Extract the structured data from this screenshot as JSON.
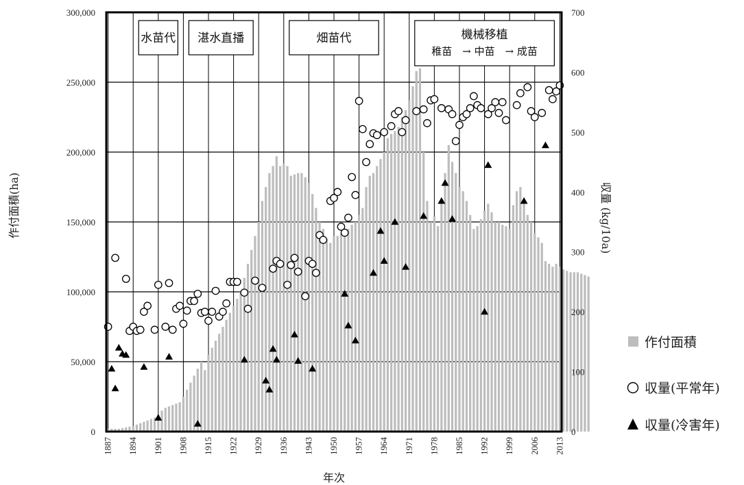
{
  "chart_data": {
    "type": "bar+scatter",
    "title": "",
    "xlabel": "年次",
    "ylabel_left": "作付面積(ha)",
    "ylabel_right": "収量 (kg/10a)",
    "ylim_left": [
      0,
      300000
    ],
    "ylim_right": [
      0,
      700
    ],
    "xlim": [
      1887,
      2013
    ],
    "left_ticks": [
      "0",
      "50,000",
      "100,000",
      "150,000",
      "200,000",
      "250,000",
      "300,000"
    ],
    "left_tick_values": [
      0,
      50000,
      100000,
      150000,
      200000,
      250000,
      300000
    ],
    "right_ticks": [
      "0",
      "100",
      "200",
      "300",
      "400",
      "500",
      "600",
      "700"
    ],
    "right_tick_values": [
      0,
      100,
      200,
      300,
      400,
      500,
      600,
      700
    ],
    "x_ticks": [
      "1887",
      "1894",
      "1901",
      "1908",
      "1915",
      "1922",
      "1929",
      "1936",
      "1943",
      "1950",
      "1957",
      "1964",
      "1971",
      "1978",
      "1985",
      "1992",
      "1999",
      "2006",
      "2013"
    ],
    "x_tick_values": [
      1887,
      1894,
      1901,
      1908,
      1915,
      1922,
      1929,
      1936,
      1943,
      1950,
      1957,
      1964,
      1971,
      1978,
      1985,
      1992,
      1999,
      2006,
      2013
    ],
    "grid": true,
    "legend_position": "right",
    "periods": [
      {
        "label": "水苗代",
        "start": 1894,
        "end": 1908
      },
      {
        "label": "湛水直播",
        "start": 1908,
        "end": 1929
      },
      {
        "label": "畑苗代",
        "start": 1936,
        "end": 1964
      },
      {
        "label": "機械移植",
        "sublabel": "稚苗　→ 中苗　→ 成苗",
        "start": 1971,
        "end": 2013
      }
    ],
    "series": [
      {
        "name": "作付面積",
        "kind": "bar",
        "axis": "left",
        "color": "#bdbdbd",
        "x_start": 1887,
        "values": [
          2000,
          2000,
          2000,
          2000,
          2500,
          3000,
          3500,
          4000,
          5000,
          6000,
          7000,
          8000,
          9000,
          10000,
          12000,
          15000,
          17000,
          18000,
          19000,
          20000,
          21000,
          25000,
          30000,
          35000,
          40000,
          45000,
          50000,
          44000,
          55000,
          60000,
          65000,
          70000,
          75000,
          80000,
          85000,
          90000,
          95000,
          100000,
          110000,
          120000,
          130000,
          140000,
          150000,
          165000,
          175000,
          185000,
          190000,
          197000,
          190000,
          192000,
          190000,
          183000,
          184000,
          185000,
          185000,
          182000,
          178000,
          170000,
          160000,
          150000,
          145000,
          138000,
          135000,
          140000,
          140000,
          142000,
          145000,
          145000,
          148000,
          150000,
          155000,
          160000,
          175000,
          183000,
          185000,
          190000,
          195000,
          200000,
          210000,
          213000,
          215000,
          218000,
          225000,
          230000,
          237000,
          247000,
          258000,
          260000,
          200000,
          165000,
          150000,
          154000,
          147000,
          165000,
          185000,
          205000,
          193000,
          185000,
          175000,
          172000,
          165000,
          155000,
          145000,
          147000,
          152000,
          158000,
          163000,
          157000,
          150000,
          150000,
          148000,
          147000,
          145000,
          162000,
          172000,
          175000,
          165000,
          155000,
          150000,
          142000,
          139000,
          135000,
          122000,
          120000,
          118000,
          120000,
          118000,
          116000,
          115000,
          114000,
          114000,
          114000,
          113000,
          112000,
          111000
        ]
      },
      {
        "name": "収量(平常年)",
        "kind": "scatter",
        "axis": "right",
        "marker": "open-circle",
        "points": [
          [
            1887,
            175
          ],
          [
            1889,
            290
          ],
          [
            1892,
            255
          ],
          [
            1893,
            168
          ],
          [
            1894,
            175
          ],
          [
            1895,
            168
          ],
          [
            1896,
            170
          ],
          [
            1897,
            200
          ],
          [
            1898,
            210
          ],
          [
            1900,
            170
          ],
          [
            1901,
            245
          ],
          [
            1903,
            175
          ],
          [
            1904,
            248
          ],
          [
            1905,
            170
          ],
          [
            1906,
            205
          ],
          [
            1907,
            210
          ],
          [
            1908,
            180
          ],
          [
            1909,
            202
          ],
          [
            1910,
            218
          ],
          [
            1911,
            218
          ],
          [
            1912,
            230
          ],
          [
            1913,
            198
          ],
          [
            1914,
            200
          ],
          [
            1915,
            185
          ],
          [
            1916,
            200
          ],
          [
            1917,
            235
          ],
          [
            1918,
            192
          ],
          [
            1919,
            200
          ],
          [
            1920,
            214
          ],
          [
            1921,
            250
          ],
          [
            1922,
            250
          ],
          [
            1923,
            250
          ],
          [
            1925,
            232
          ],
          [
            1926,
            205
          ],
          [
            1928,
            252
          ],
          [
            1930,
            240
          ],
          [
            1933,
            272
          ],
          [
            1934,
            285
          ],
          [
            1935,
            280
          ],
          [
            1937,
            245
          ],
          [
            1938,
            278
          ],
          [
            1939,
            290
          ],
          [
            1940,
            267
          ],
          [
            1942,
            226
          ],
          [
            1943,
            285
          ],
          [
            1944,
            280
          ],
          [
            1945,
            265
          ],
          [
            1946,
            328
          ],
          [
            1947,
            320
          ],
          [
            1949,
            385
          ],
          [
            1950,
            390
          ],
          [
            1951,
            400
          ],
          [
            1952,
            342
          ],
          [
            1953,
            332
          ],
          [
            1954,
            357
          ],
          [
            1955,
            425
          ],
          [
            1956,
            395
          ],
          [
            1957,
            552
          ],
          [
            1958,
            505
          ],
          [
            1959,
            450
          ],
          [
            1960,
            480
          ],
          [
            1961,
            498
          ],
          [
            1962,
            495
          ],
          [
            1964,
            500
          ],
          [
            1966,
            510
          ],
          [
            1967,
            530
          ],
          [
            1968,
            535
          ],
          [
            1969,
            500
          ],
          [
            1970,
            520
          ],
          [
            1973,
            535
          ],
          [
            1975,
            538
          ],
          [
            1976,
            515
          ],
          [
            1977,
            553
          ],
          [
            1978,
            555
          ],
          [
            1980,
            540
          ],
          [
            1982,
            538
          ],
          [
            1983,
            530
          ],
          [
            1984,
            485
          ],
          [
            1985,
            512
          ],
          [
            1986,
            525
          ],
          [
            1987,
            530
          ],
          [
            1988,
            540
          ],
          [
            1989,
            560
          ],
          [
            1990,
            545
          ],
          [
            1991,
            540
          ],
          [
            1993,
            530
          ],
          [
            1994,
            540
          ],
          [
            1995,
            550
          ],
          [
            1996,
            532
          ],
          [
            1997,
            550
          ],
          [
            1998,
            520
          ],
          [
            2001,
            545
          ],
          [
            2002,
            565
          ],
          [
            2004,
            575
          ],
          [
            2005,
            535
          ],
          [
            2006,
            525
          ],
          [
            2008,
            532
          ],
          [
            2010,
            570
          ],
          [
            2011,
            555
          ],
          [
            2012,
            568
          ],
          [
            2013,
            578
          ]
        ]
      },
      {
        "name": "収量(冷害年)",
        "kind": "scatter",
        "axis": "right",
        "marker": "filled-triangle",
        "points": [
          [
            1888,
            105
          ],
          [
            1889,
            72
          ],
          [
            1890,
            140
          ],
          [
            1891,
            130
          ],
          [
            1892,
            128
          ],
          [
            1897,
            108
          ],
          [
            1901,
            23
          ],
          [
            1904,
            125
          ],
          [
            1912,
            13
          ],
          [
            1925,
            120
          ],
          [
            1931,
            85
          ],
          [
            1932,
            70
          ],
          [
            1933,
            138
          ],
          [
            1934,
            120
          ],
          [
            1939,
            162
          ],
          [
            1940,
            118
          ],
          [
            1944,
            105
          ],
          [
            1953,
            230
          ],
          [
            1954,
            177
          ],
          [
            1956,
            152
          ],
          [
            1961,
            265
          ],
          [
            1963,
            335
          ],
          [
            1964,
            285
          ],
          [
            1967,
            350
          ],
          [
            1970,
            275
          ],
          [
            1975,
            360
          ],
          [
            1980,
            385
          ],
          [
            1981,
            415
          ],
          [
            1983,
            355
          ],
          [
            1992,
            200
          ],
          [
            1993,
            445
          ],
          [
            2003,
            385
          ],
          [
            2009,
            478
          ]
        ]
      }
    ]
  }
}
